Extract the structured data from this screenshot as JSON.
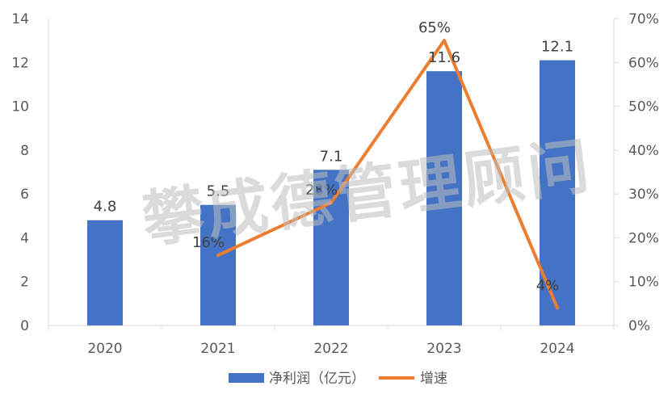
{
  "chart_data": {
    "type": "bar",
    "categories": [
      "2020",
      "2021",
      "2022",
      "2023",
      "2024"
    ],
    "series": [
      {
        "name": "净利润（亿元）",
        "type": "bar",
        "axis": "left",
        "color": "#4472C4",
        "values": [
          4.8,
          5.5,
          7.1,
          11.6,
          12.1
        ],
        "labels": [
          "4.8",
          "5.5",
          "7.1",
          "11.6",
          "12.1"
        ]
      },
      {
        "name": "增速",
        "type": "line",
        "axis": "right",
        "color": "#ED7D31",
        "values": [
          null,
          16,
          28,
          65,
          4
        ],
        "labels": [
          "",
          "16%",
          "28%",
          "65%",
          "4%"
        ]
      }
    ],
    "y_left": {
      "min": 0,
      "max": 14,
      "ticks": [
        "0",
        "2",
        "4",
        "6",
        "8",
        "10",
        "12",
        "14"
      ]
    },
    "y_right": {
      "min": 0,
      "max": 70,
      "ticks": [
        "0%",
        "10%",
        "20%",
        "30%",
        "40%",
        "50%",
        "60%",
        "70%"
      ]
    },
    "legend_position": "bottom",
    "grid": false
  },
  "watermark": "攀成德管理顾问"
}
